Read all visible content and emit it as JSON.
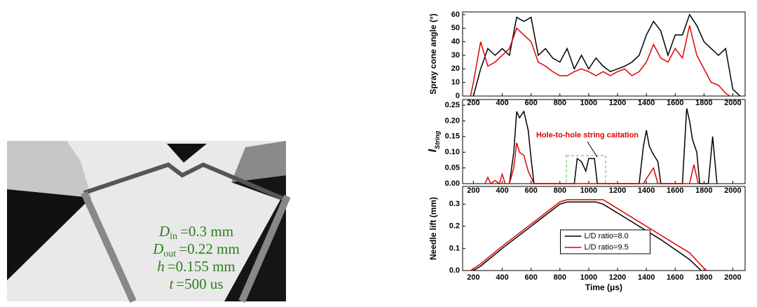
{
  "photo": {
    "labels": [
      {
        "symbol": "D",
        "sub": "in",
        "text": "=0.3 mm"
      },
      {
        "symbol": "D",
        "sub": "out",
        "text": "=0.22 mm"
      },
      {
        "symbol": "h",
        "text": "=0.155 mm"
      },
      {
        "symbol": "t",
        "text": "=500 us"
      }
    ]
  },
  "chart_data": [
    {
      "type": "line",
      "y_label": "Spray cone angle (°)",
      "xlim": [
        125,
        2085
      ],
      "ylim": [
        0,
        62
      ],
      "xticks": [
        200,
        400,
        600,
        800,
        1000,
        1200,
        1400,
        1600,
        1800,
        2000
      ],
      "yticks": [
        0,
        10,
        20,
        30,
        40,
        50,
        60
      ],
      "series": [
        {
          "name": "L/D ratio=8.0",
          "color": "#000000",
          "x": [
            200,
            250,
            300,
            350,
            400,
            450,
            500,
            550,
            600,
            650,
            700,
            750,
            800,
            850,
            900,
            950,
            1000,
            1050,
            1100,
            1150,
            1200,
            1250,
            1300,
            1350,
            1400,
            1450,
            1500,
            1550,
            1600,
            1650,
            1700,
            1750,
            1800,
            1850,
            1900,
            1950,
            2000,
            2050
          ],
          "values": [
            0,
            20,
            35,
            30,
            35,
            30,
            58,
            55,
            58,
            30,
            35,
            28,
            25,
            35,
            20,
            30,
            20,
            28,
            22,
            18,
            20,
            22,
            25,
            30,
            45,
            55,
            48,
            30,
            45,
            45,
            60,
            52,
            40,
            35,
            30,
            35,
            5,
            0
          ]
        },
        {
          "name": "L/D ratio=9.5",
          "color": "#e00000",
          "x": [
            180,
            200,
            250,
            300,
            350,
            400,
            450,
            500,
            550,
            600,
            650,
            700,
            750,
            800,
            850,
            900,
            950,
            1000,
            1050,
            1100,
            1150,
            1200,
            1250,
            1300,
            1350,
            1400,
            1450,
            1500,
            1550,
            1600,
            1650,
            1700,
            1750,
            1800,
            1850,
            1900,
            1950,
            1980
          ],
          "values": [
            0,
            10,
            40,
            22,
            25,
            30,
            35,
            50,
            45,
            40,
            25,
            22,
            18,
            15,
            15,
            18,
            20,
            18,
            15,
            18,
            15,
            18,
            20,
            15,
            18,
            25,
            38,
            28,
            25,
            35,
            28,
            52,
            30,
            20,
            10,
            8,
            2,
            0
          ]
        }
      ]
    },
    {
      "type": "line",
      "y_label": {
        "main": "I",
        "sub": "String"
      },
      "xlim": [
        125,
        2085
      ],
      "ylim": [
        0,
        0.268
      ],
      "xticks": [
        200,
        400,
        600,
        800,
        1000,
        1200,
        1400,
        1600,
        1800,
        2000
      ],
      "yticks": [
        {
          "value": 0,
          "label": "0.00"
        },
        0.05,
        {
          "value": 0.1,
          "label": "0.10"
        },
        0.15,
        {
          "value": 0.2,
          "label": "0.20"
        },
        0.25
      ],
      "annotation": "Hole-to-hole string caitation",
      "series": [
        {
          "name": "L/D ratio=8.0",
          "color": "#000000",
          "x": [
            450,
            480,
            500,
            520,
            550,
            580,
            600,
            620,
            900,
            920,
            950,
            980,
            1000,
            1040,
            1060,
            1350,
            1380,
            1400,
            1420,
            1440,
            1480,
            1500,
            1650,
            1680,
            1700,
            1720,
            1750,
            1770,
            1830,
            1860,
            1890
          ],
          "values": [
            0,
            0.1,
            0.23,
            0.21,
            0.23,
            0.17,
            0.08,
            0,
            0,
            0.08,
            0.07,
            0.04,
            0.08,
            0.08,
            0,
            0,
            0.12,
            0.17,
            0.12,
            0.1,
            0.07,
            0,
            0,
            0.24,
            0.2,
            0.14,
            0.1,
            0,
            0,
            0.15,
            0
          ]
        },
        {
          "name": "L/D ratio=9.5",
          "color": "#e00000",
          "x": [
            280,
            300,
            320,
            350,
            380,
            400,
            420,
            450,
            480,
            500,
            520,
            550,
            580,
            600,
            620,
            1380,
            1420,
            1450,
            1480,
            1700,
            1730,
            1760
          ],
          "values": [
            0,
            0.02,
            0,
            0.01,
            0,
            0.03,
            0,
            0,
            0.05,
            0.13,
            0.1,
            0.09,
            0.04,
            0.02,
            0,
            0,
            0.03,
            0.05,
            0,
            0,
            0.06,
            0
          ]
        }
      ]
    },
    {
      "type": "line",
      "y_label": "Needle lift (mm)",
      "x_label": "Time (μs)",
      "xlim": [
        125,
        2085
      ],
      "ylim": [
        0,
        0.38
      ],
      "xticks": [
        200,
        400,
        600,
        800,
        1000,
        1200,
        1400,
        1600,
        1800,
        2000
      ],
      "yticks": [
        {
          "value": 0,
          "label": "0.0"
        },
        0.1,
        0.2,
        0.3
      ],
      "legend": "center",
      "series": [
        {
          "name": "L/D ratio=8.0",
          "color": "#000000",
          "x": [
            200,
            250,
            400,
            600,
            800,
            850,
            1050,
            1100,
            1300,
            1500,
            1700,
            1780
          ],
          "values": [
            0,
            0.02,
            0.1,
            0.2,
            0.3,
            0.31,
            0.31,
            0.3,
            0.22,
            0.14,
            0.05,
            0
          ]
        },
        {
          "name": "L/D ratio=9.5",
          "color": "#e00000",
          "x": [
            180,
            250,
            400,
            600,
            800,
            850,
            1100,
            1300,
            1500,
            1700,
            1800,
            1820
          ],
          "values": [
            0,
            0.03,
            0.11,
            0.21,
            0.31,
            0.32,
            0.32,
            0.24,
            0.16,
            0.08,
            0.01,
            0
          ]
        }
      ]
    }
  ]
}
